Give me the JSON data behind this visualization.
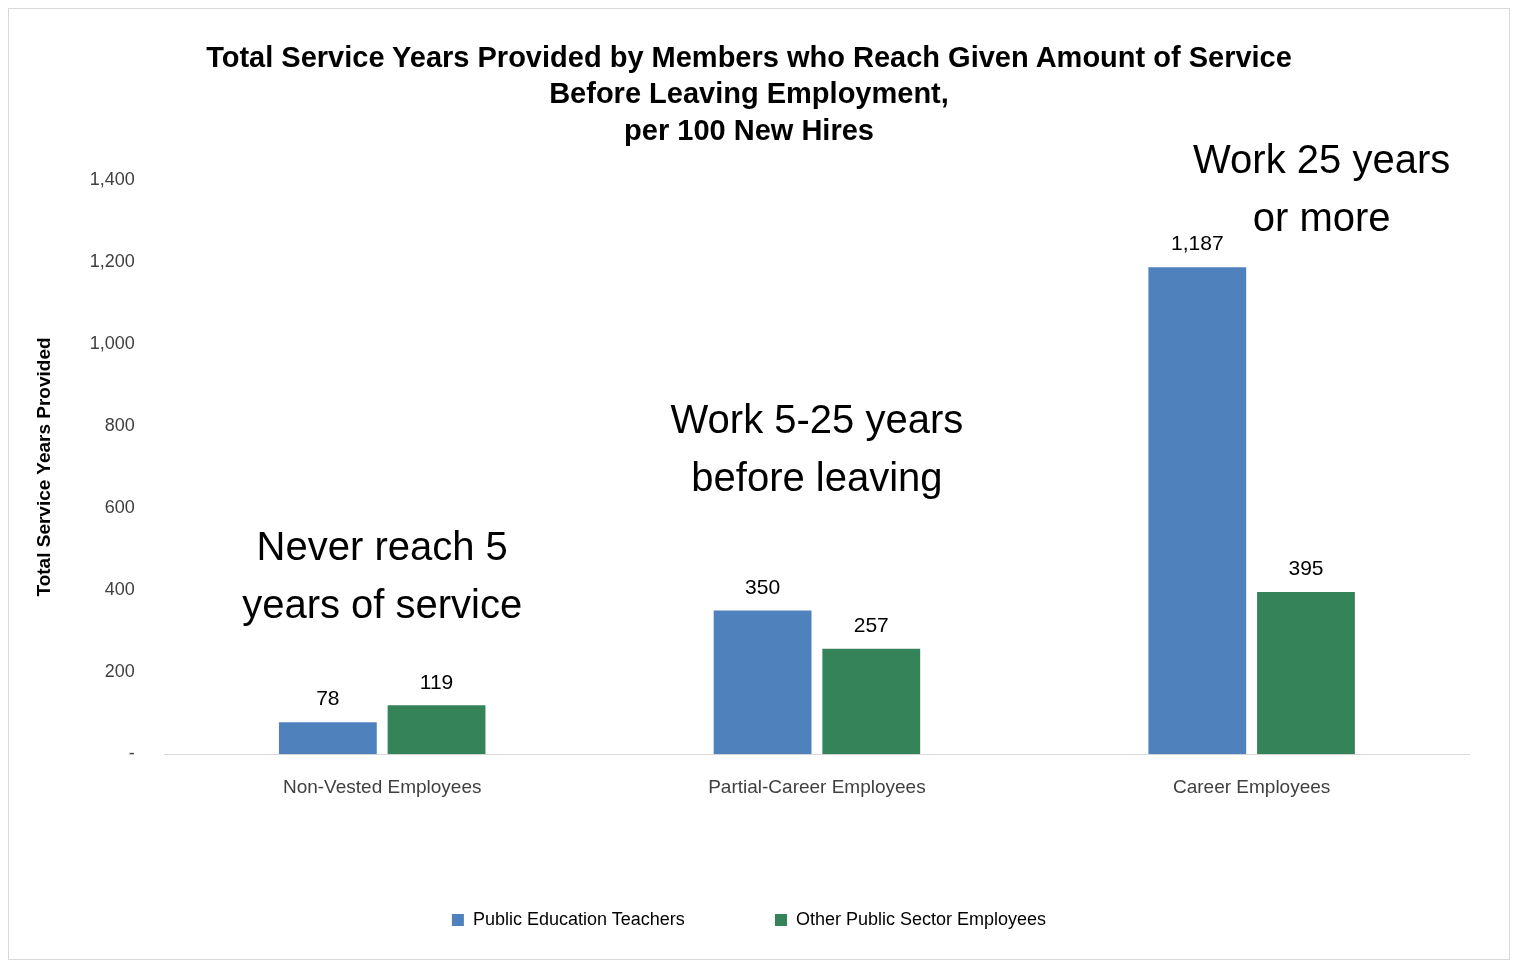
{
  "chart_data": {
    "type": "bar",
    "title": "Total Service Years Provided by Members who Reach Given Amount of Service\nBefore Leaving Employment,\nper 100 New Hires",
    "ylabel": "Total Service Years Provided",
    "categories": [
      "Non-Vested Employees",
      "Partial-Career Employees",
      "Career Employees"
    ],
    "series": [
      {
        "name": "Public Education Teachers",
        "color": "#4f81bd",
        "values": [
          78,
          350,
          1187
        ],
        "value_labels": [
          "78",
          "350",
          "1,187"
        ]
      },
      {
        "name": "Other Public Sector Employees",
        "color": "#358359",
        "values": [
          119,
          257,
          395
        ],
        "value_labels": [
          "119",
          "257",
          "395"
        ]
      }
    ],
    "ylim": [
      0,
      1400
    ],
    "yticks": [
      {
        "value": 0,
        "label": "-"
      },
      {
        "value": 200,
        "label": "200"
      },
      {
        "value": 400,
        "label": "400"
      },
      {
        "value": 600,
        "label": "600"
      },
      {
        "value": 800,
        "label": "800"
      },
      {
        "value": 1000,
        "label": "1,000"
      },
      {
        "value": 1200,
        "label": "1,200"
      },
      {
        "value": 1400,
        "label": "1,400"
      }
    ],
    "grid": false,
    "legend": "bottom",
    "annotations": [
      "Never reach 5\nyears of service",
      "Work 5-25 years\nbefore leaving",
      "Work 25 years\nor more"
    ]
  }
}
